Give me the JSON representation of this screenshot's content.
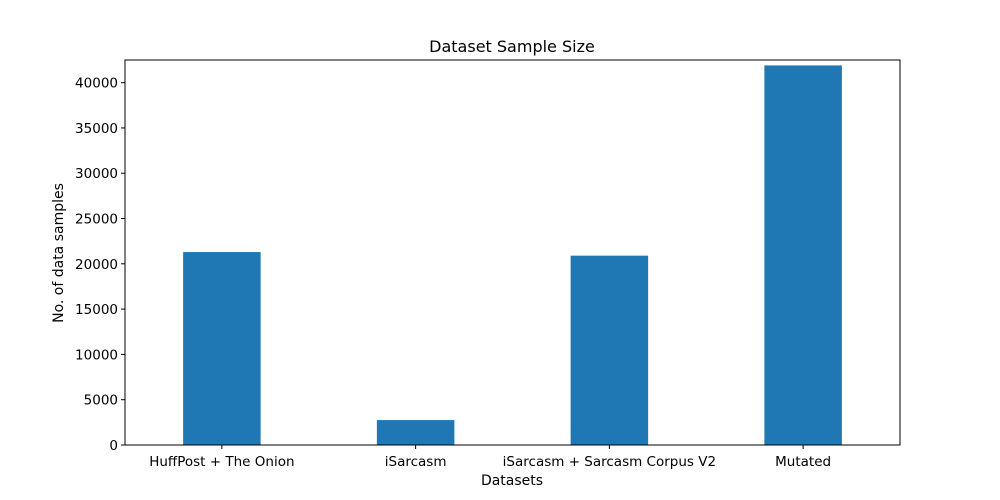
{
  "chart_data": {
    "type": "bar",
    "title": "Dataset Sample Size",
    "xlabel": "Datasets",
    "ylabel": "No. of data samples",
    "categories": [
      "HuffPost + The Onion",
      "iSarcasm",
      "iSarcasm + Sarcasm Corpus V2",
      "Mutated"
    ],
    "values": [
      21300,
      2750,
      20900,
      41900
    ],
    "ylim": [
      0,
      42500
    ],
    "yticks": [
      0,
      5000,
      10000,
      15000,
      20000,
      25000,
      30000,
      35000,
      40000
    ],
    "ytick_labels": [
      "0",
      "5000",
      "10000",
      "15000",
      "20000",
      "25000",
      "30000",
      "35000",
      "40000"
    ],
    "grid": false,
    "bar_color": "#1f77b4"
  }
}
